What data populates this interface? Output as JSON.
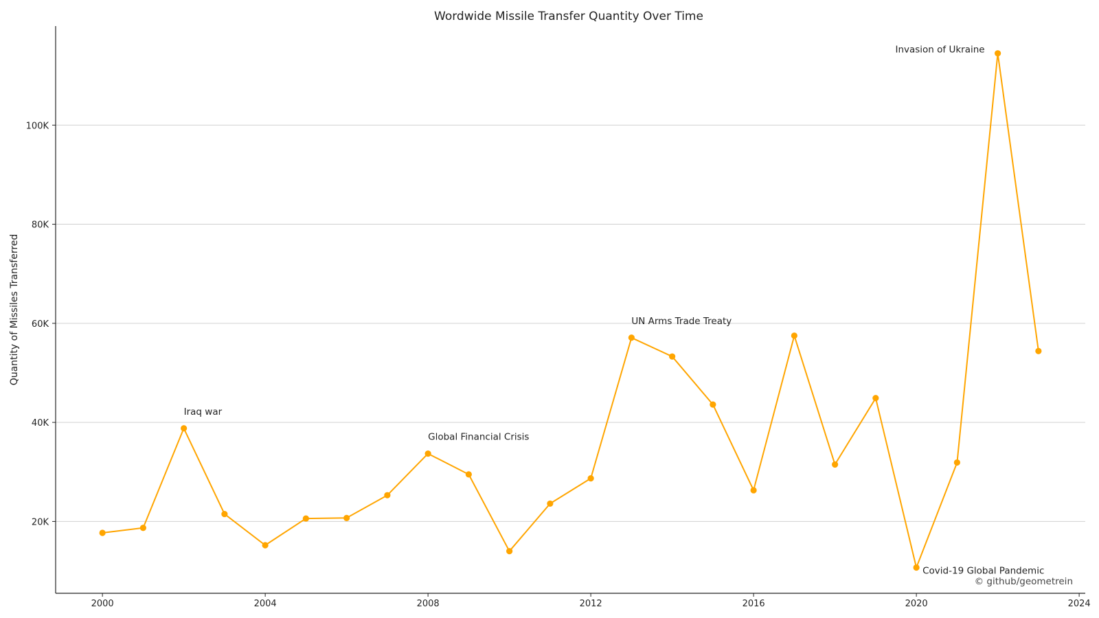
{
  "chart_data": {
    "type": "line",
    "title": "Wordwide Missile Transfer Quantity Over Time",
    "xlabel": "",
    "ylabel": "Quantity of Missiles Transferred",
    "x": [
      2000,
      2001,
      2002,
      2003,
      2004,
      2005,
      2006,
      2007,
      2008,
      2009,
      2010,
      2011,
      2012,
      2013,
      2014,
      2015,
      2016,
      2017,
      2018,
      2019,
      2020,
      2021,
      2022,
      2023
    ],
    "series": [
      {
        "values": [
          17700,
          18700,
          38800,
          21500,
          15200,
          20600,
          20700,
          25300,
          33700,
          29500,
          14000,
          23600,
          28700,
          57100,
          53300,
          43600,
          26300,
          57500,
          31500,
          44900,
          10700,
          31900,
          114500,
          54400
        ],
        "color": "#FFA500"
      }
    ],
    "xlim": [
      1998.85,
      2024.15
    ],
    "ylim": [
      5500,
      120000
    ],
    "xticks": [
      2000,
      2004,
      2008,
      2012,
      2016,
      2020,
      2024
    ],
    "xtick_labels": [
      "2000",
      "2004",
      "2008",
      "2012",
      "2016",
      "2020",
      "2024"
    ],
    "yticks": [
      20000,
      40000,
      60000,
      80000,
      100000
    ],
    "ytick_labels": [
      "20K",
      "40K",
      "60K",
      "80K",
      "100K"
    ],
    "grid": "horizontal",
    "legend": "none",
    "annotations": [
      {
        "text": "Iraq war",
        "x": 2002,
        "y": 38800,
        "placement": "above-right"
      },
      {
        "text": "Global Financial Crisis",
        "x": 2008,
        "y": 33700,
        "placement": "above-right"
      },
      {
        "text": "UN Arms Trade Treaty",
        "x": 2013,
        "y": 57100,
        "placement": "above-right"
      },
      {
        "text": "Covid-19 Global Pandemic",
        "x": 2020,
        "y": 10700,
        "placement": "right"
      },
      {
        "text": "Invasion of Ukraine",
        "x": 2022,
        "y": 114500,
        "placement": "left"
      }
    ],
    "credit": "© github/geometrein"
  }
}
